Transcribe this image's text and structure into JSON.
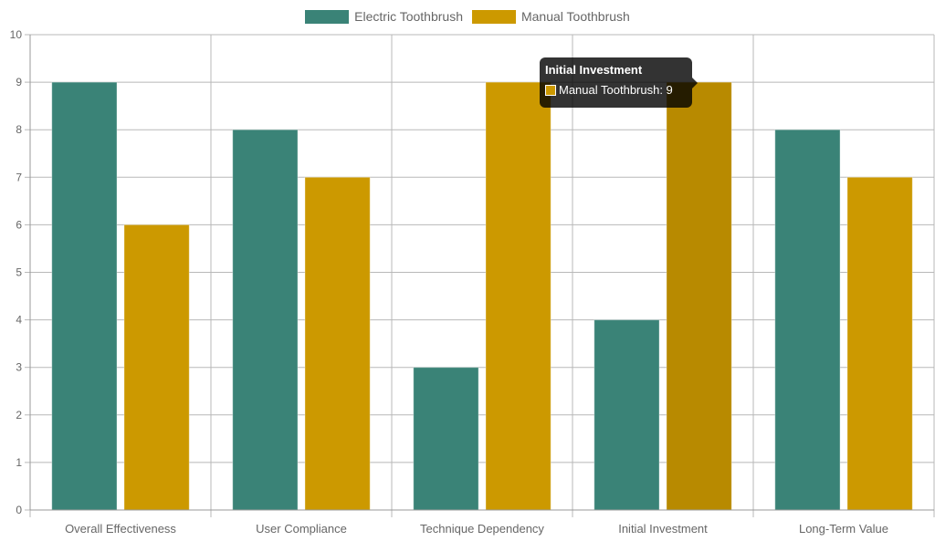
{
  "chart_data": {
    "type": "bar",
    "categories": [
      "Overall Effectiveness",
      "User Compliance",
      "Technique Dependency",
      "Initial Investment",
      "Long-Term Value"
    ],
    "series": [
      {
        "name": "Electric Toothbrush",
        "values": [
          9,
          8,
          3,
          4,
          8
        ],
        "color": "#3a8377"
      },
      {
        "name": "Manual Toothbrush",
        "values": [
          6,
          7,
          9,
          9,
          7
        ],
        "color": "#cc9900"
      }
    ],
    "ylim": [
      0,
      10
    ],
    "yticks": [
      "0",
      "1",
      "2",
      "3",
      "4",
      "5",
      "6",
      "7",
      "8",
      "9",
      "10"
    ],
    "grid": true,
    "legend_position": "top-center",
    "hover_color": "#b88a00"
  },
  "legend": {
    "items": [
      {
        "label": "Electric Toothbrush",
        "color": "#3a8377"
      },
      {
        "label": "Manual Toothbrush",
        "color": "#cc9900"
      }
    ]
  },
  "tooltip": {
    "title": "Initial Investment",
    "series_label": "Manual Toothbrush",
    "value_text": "Manual Toothbrush: 9",
    "color": "#cc9900"
  }
}
